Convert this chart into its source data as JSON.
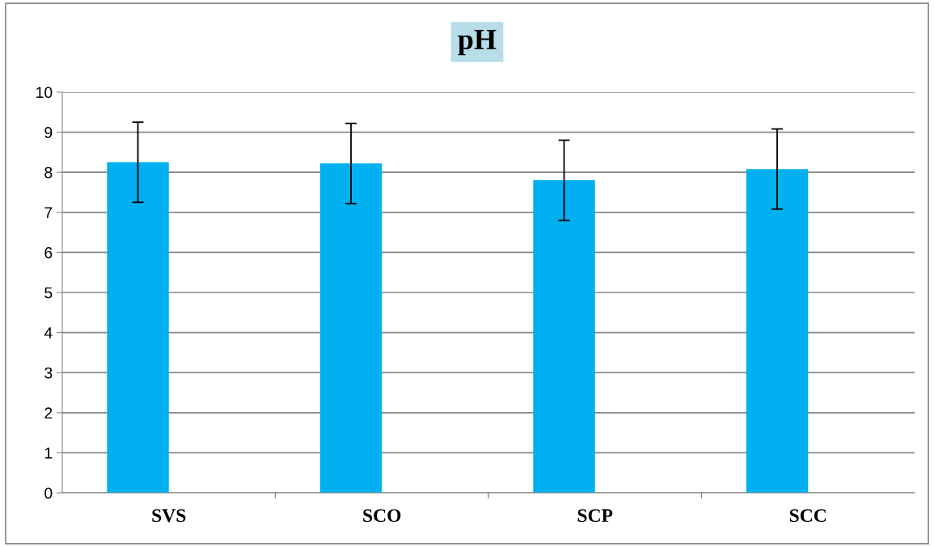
{
  "chart_data": {
    "type": "bar",
    "title": "pH",
    "categories": [
      "SVS",
      "SCO",
      "SCP",
      "SCC"
    ],
    "values": [
      8.25,
      8.22,
      7.8,
      8.08
    ],
    "errors": [
      1,
      1,
      1,
      1
    ],
    "color": "#00b0f0",
    "ylim": [
      0,
      10
    ],
    "yticks": [
      0,
      1,
      2,
      3,
      4,
      5,
      6,
      7,
      8,
      9,
      10
    ],
    "grid": "y"
  }
}
